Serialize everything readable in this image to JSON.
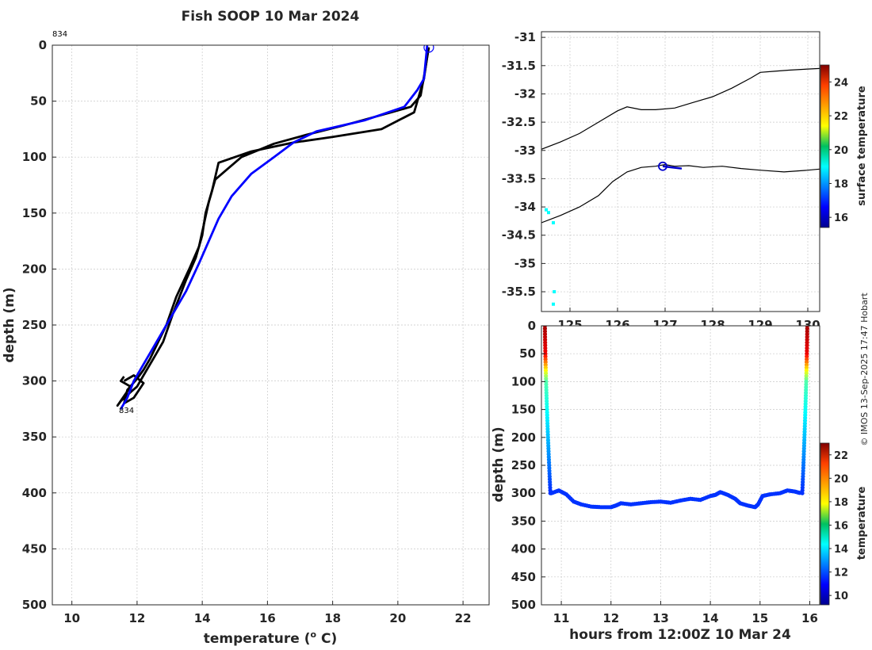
{
  "chart_data": [
    {
      "type": "line",
      "title": "Fish SOOP 10 Mar 2024",
      "xlabel": "temperature (",
      "xlabel_sup": "o",
      "xlabel_suffix": " C)",
      "ylabel": "depth (m)",
      "xlim": [
        9.4,
        22.8
      ],
      "ylim": [
        0,
        500
      ],
      "y_reversed": true,
      "xticks": [
        10,
        12,
        14,
        16,
        18,
        20,
        22
      ],
      "yticks": [
        0,
        50,
        100,
        150,
        200,
        250,
        300,
        350,
        400,
        450,
        500
      ],
      "grid": true,
      "annotations": [
        {
          "text": "834",
          "x": 9.4,
          "y": -11
        },
        {
          "text": "834",
          "x": 11.3,
          "y": 328
        }
      ],
      "start_marker": {
        "x": 20.95,
        "y": 2
      },
      "series": [
        {
          "name": "profile-1",
          "color": "#000000",
          "x": [
            20.95,
            20.9,
            20.8,
            20.5,
            19.5,
            18.0,
            16.8,
            15.5,
            14.5,
            14.3,
            14.1,
            14.0,
            13.8,
            13.5,
            13.1,
            12.8,
            12.5,
            12.2,
            12.0,
            11.8,
            11.5,
            11.4,
            11.8,
            11.5,
            11.6
          ],
          "y": [
            2,
            10,
            30,
            60,
            75,
            82,
            87,
            95,
            105,
            130,
            150,
            170,
            190,
            210,
            240,
            265,
            280,
            295,
            305,
            310,
            318,
            322,
            305,
            300,
            296
          ]
        },
        {
          "name": "profile-2",
          "color": "#000000",
          "x": [
            20.95,
            20.85,
            20.7,
            20.4,
            19.8,
            18.3,
            17.2,
            16.2,
            15.2,
            14.8,
            14.4,
            14.2,
            14.05,
            13.9,
            13.6,
            13.2,
            12.9,
            12.6,
            12.4,
            12.2,
            12.0,
            11.7,
            11.6,
            11.9,
            12.2,
            11.9,
            11.6
          ],
          "y": [
            2,
            20,
            45,
            55,
            60,
            72,
            80,
            88,
            100,
            110,
            120,
            140,
            160,
            180,
            200,
            225,
            250,
            268,
            280,
            290,
            298,
            308,
            320,
            315,
            302,
            295,
            300
          ]
        },
        {
          "name": "profile-3",
          "color": "#0000ff",
          "x": [
            20.9,
            20.8,
            20.6,
            20.2,
            19.0,
            17.5,
            16.8,
            16.2,
            15.5,
            14.9,
            14.5,
            14.2,
            13.9,
            13.5,
            13.0,
            12.5,
            12.2,
            11.9,
            11.7,
            11.5
          ],
          "y": [
            0,
            30,
            40,
            55,
            67,
            77,
            87,
            100,
            115,
            135,
            155,
            175,
            195,
            220,
            245,
            270,
            285,
            300,
            315,
            325
          ]
        }
      ]
    },
    {
      "type": "scatter",
      "xlim": [
        124.4,
        130.25
      ],
      "ylim": [
        -35.85,
        -30.9
      ],
      "xticks": [
        125,
        126,
        127,
        128,
        129,
        130
      ],
      "xtick_labels": [
        "125",
        "126",
        "127",
        "128",
        "129",
        "130"
      ],
      "yticks": [
        -31,
        -31.5,
        -32,
        -32.5,
        -33,
        -33.5,
        -34,
        -34.5,
        -35,
        -35.5
      ],
      "ytick_labels": [
        "-31",
        "-31.5",
        "-32",
        "-32.5",
        "-33",
        "-33.5",
        "-34",
        "-34.5",
        "-35",
        "-35.5"
      ],
      "grid": true,
      "colorbar": {
        "label": "surface temperature",
        "range": [
          15.4,
          25
        ],
        "ticks": [
          16,
          18,
          20,
          22,
          24
        ]
      },
      "coast_upper": {
        "x": [
          124.4,
          124.8,
          125.2,
          125.6,
          126.0,
          126.2,
          126.5,
          126.8,
          127.2,
          127.6,
          128.0,
          128.4,
          128.8,
          129.0,
          129.3,
          129.6,
          130.0,
          130.25
        ],
        "y": [
          -32.98,
          -32.85,
          -32.7,
          -32.5,
          -32.3,
          -32.23,
          -32.28,
          -32.28,
          -32.25,
          -32.15,
          -32.05,
          -31.9,
          -31.72,
          -31.62,
          -31.6,
          -31.58,
          -31.56,
          -31.55
        ]
      },
      "coast_lower": {
        "x": [
          124.4,
          124.8,
          125.2,
          125.6,
          125.9,
          126.2,
          126.5,
          126.8,
          127.0,
          127.2,
          127.5,
          127.8,
          128.2,
          128.6,
          129.0,
          129.5,
          130.0,
          130.25
        ],
        "y": [
          -34.28,
          -34.15,
          -34.0,
          -33.8,
          -33.55,
          -33.38,
          -33.3,
          -33.28,
          -33.25,
          -33.28,
          -33.27,
          -33.3,
          -33.28,
          -33.32,
          -33.35,
          -33.38,
          -33.35,
          -33.33
        ]
      },
      "points": [
        {
          "x": 124.5,
          "y": -34.05,
          "v": 19.0
        },
        {
          "x": 124.55,
          "y": -34.1,
          "v": 19.0
        },
        {
          "x": 124.65,
          "y": -34.28,
          "v": 19.0
        },
        {
          "x": 124.67,
          "y": -35.5,
          "v": 19.0
        },
        {
          "x": 124.65,
          "y": -35.72,
          "v": 19.0
        }
      ],
      "track": {
        "x": [
          126.95,
          127.15,
          127.35
        ],
        "y": [
          -33.28,
          -33.3,
          -33.32
        ]
      },
      "track_marker": {
        "x": 126.95,
        "y": -33.28
      }
    },
    {
      "type": "scatter",
      "xlabel": "hours from 12:00Z 10 Mar 24",
      "ylabel": "depth (m)",
      "xlim": [
        10.6,
        16.2
      ],
      "ylim": [
        0,
        500
      ],
      "y_reversed": true,
      "xticks": [
        11,
        12,
        13,
        14,
        15,
        16
      ],
      "yticks": [
        0,
        50,
        100,
        150,
        200,
        250,
        300,
        350,
        400,
        450,
        500
      ],
      "grid": true,
      "colorbar": {
        "label": "temperature",
        "range": [
          9.2,
          23
        ],
        "ticks": [
          10,
          12,
          14,
          16,
          18,
          20,
          22
        ]
      },
      "descent": {
        "t0": 10.67,
        "t1": 10.78
      },
      "ascent": {
        "t0": 15.85,
        "t1": 15.95
      },
      "bottom_track": {
        "t": [
          10.8,
          10.95,
          11.1,
          11.25,
          11.4,
          11.6,
          11.8,
          12.0,
          12.1,
          12.2,
          12.4,
          12.6,
          12.8,
          13.0,
          13.2,
          13.4,
          13.6,
          13.8,
          14.0,
          14.1,
          14.2,
          14.35,
          14.5,
          14.6,
          14.75,
          14.9,
          14.96,
          15.05,
          15.2,
          15.4,
          15.55,
          15.7,
          15.82
        ],
        "d": [
          300,
          295,
          302,
          315,
          320,
          324,
          325,
          325,
          322,
          318,
          320,
          318,
          316,
          315,
          317,
          313,
          310,
          312,
          305,
          303,
          298,
          303,
          310,
          318,
          322,
          325,
          320,
          305,
          302,
          300,
          295,
          297,
          300
        ],
        "temp": 11.6
      },
      "t_surface": 22.5,
      "t_bottom": 11.6
    }
  ],
  "watermark": "© IMOS 13-Sep-2025 17:47 Hobart",
  "colors": {
    "text": "#262626",
    "grid": "#c8c8c8",
    "profile_black": "#000000",
    "profile_blue": "#0000ff"
  }
}
